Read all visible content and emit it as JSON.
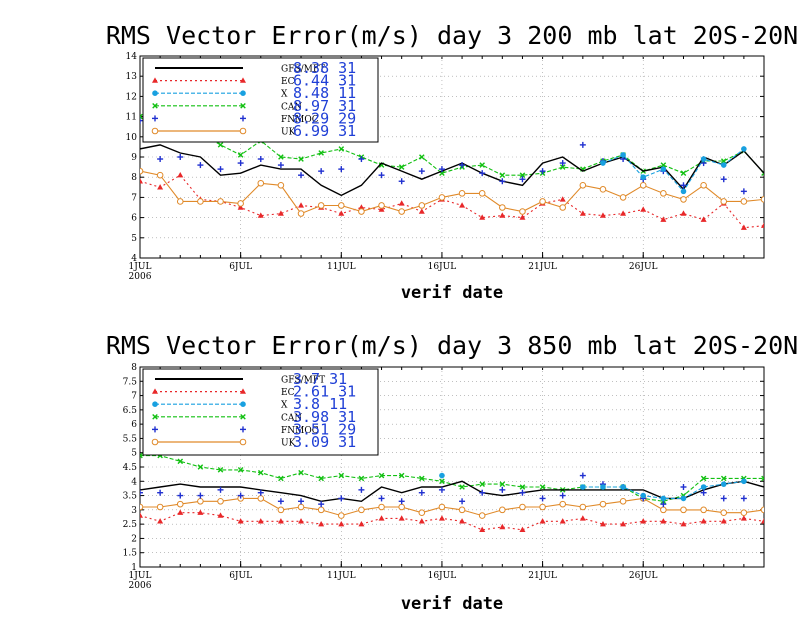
{
  "chart_data": [
    {
      "type": "line",
      "title": "RMS Vector Error(m/s) day 3  200 mb   lat 20S-20N",
      "xlabel": "verif date",
      "ylabel": "",
      "xlim": [
        1,
        31
      ],
      "ylim": [
        4,
        14
      ],
      "yticks": [
        "4",
        "5",
        "6",
        "7",
        "8",
        "9",
        "10",
        "11",
        "12",
        "13",
        "14"
      ],
      "xticks": [
        {
          "day": 1,
          "label": "1JUL",
          "label2": "2006"
        },
        {
          "day": 6,
          "label": "6JUL",
          "label2": ""
        },
        {
          "day": 11,
          "label": "11JUL",
          "label2": ""
        },
        {
          "day": 16,
          "label": "16JUL",
          "label2": ""
        },
        {
          "day": 21,
          "label": "21JUL",
          "label2": ""
        },
        {
          "day": 26,
          "label": "26JUL",
          "label2": ""
        }
      ],
      "grid": true,
      "legend_position": "top-left",
      "series": [
        {
          "name": "GFS/MFT",
          "stat": "8.38  31",
          "color": "#000000",
          "style": "solid",
          "marker": "none",
          "values": [
            9.4,
            9.6,
            9.2,
            9.0,
            8.1,
            8.2,
            8.6,
            8.4,
            8.4,
            7.6,
            7.1,
            7.6,
            8.7,
            8.3,
            7.9,
            8.3,
            8.7,
            8.2,
            7.8,
            7.6,
            8.7,
            9.0,
            8.3,
            8.7,
            9.0,
            8.3,
            8.5,
            7.4,
            9.0,
            8.6,
            9.3,
            8.2
          ]
        },
        {
          "name": "EC",
          "stat": "6.44  31",
          "color": "#e8282a",
          "style": "dotted",
          "marker": "triangle",
          "values": [
            7.8,
            7.5,
            8.1,
            6.9,
            6.8,
            6.5,
            6.1,
            6.2,
            6.6,
            6.5,
            6.2,
            6.5,
            6.4,
            6.7,
            6.3,
            6.9,
            6.6,
            6.0,
            6.1,
            6.0,
            6.7,
            6.9,
            6.2,
            6.1,
            6.2,
            6.4,
            5.9,
            6.2,
            5.9,
            6.7,
            5.5,
            5.6
          ]
        },
        {
          "name": "X",
          "stat": "8.48  11",
          "color": "#18a0e0",
          "style": "dashed",
          "marker": "circle",
          "values": [
            null,
            null,
            null,
            null,
            null,
            null,
            null,
            null,
            null,
            null,
            null,
            null,
            null,
            null,
            null,
            null,
            null,
            null,
            null,
            null,
            null,
            null,
            null,
            8.7,
            9.1,
            8.0,
            8.4,
            7.3,
            8.9,
            8.6,
            9.4,
            null
          ]
        },
        {
          "name": "CAN",
          "stat": "8.97  31",
          "color": "#12c012",
          "style": "dashed",
          "marker": "x",
          "values": [
            11.0,
            10.2,
            10.7,
            10.2,
            9.6,
            9.1,
            9.8,
            9.0,
            8.9,
            9.2,
            9.4,
            9.0,
            8.6,
            8.5,
            9.0,
            8.2,
            8.5,
            8.6,
            8.1,
            8.1,
            8.2,
            8.5,
            8.4,
            8.8,
            9.1,
            8.3,
            8.6,
            8.2,
            8.8,
            8.8,
            9.3,
            8.2
          ]
        },
        {
          "name": "FNMOC",
          "stat": "8.29  29",
          "color": "#2030d0",
          "style": "none",
          "marker": "plus",
          "values": [
            10.8,
            8.9,
            9.0,
            8.6,
            8.4,
            8.7,
            8.9,
            8.6,
            8.1,
            8.3,
            8.4,
            8.9,
            8.1,
            7.8,
            8.3,
            8.4,
            8.6,
            8.2,
            7.8,
            7.9,
            8.3,
            8.7,
            9.6,
            8.8,
            8.9,
            7.9,
            8.3,
            7.6,
            8.7,
            7.9,
            7.3,
            null
          ]
        },
        {
          "name": "UK",
          "stat": "6.99  31",
          "color": "#e08a2a",
          "style": "solid",
          "marker": "circle-open",
          "values": [
            8.3,
            8.1,
            6.8,
            6.8,
            6.8,
            6.7,
            7.7,
            7.6,
            6.2,
            6.6,
            6.6,
            6.3,
            6.6,
            6.3,
            6.6,
            7.0,
            7.2,
            7.2,
            6.5,
            6.3,
            6.8,
            6.5,
            7.6,
            7.4,
            7.0,
            7.6,
            7.2,
            6.9,
            7.6,
            6.8,
            6.8,
            6.9
          ]
        }
      ]
    },
    {
      "type": "line",
      "title": "RMS Vector Error(m/s) day 3  850 mb   lat 20S-20N",
      "xlabel": "verif date",
      "ylabel": "",
      "xlim": [
        1,
        31
      ],
      "ylim": [
        1,
        8
      ],
      "yticks": [
        "1",
        "1.5",
        "2",
        "2.5",
        "3",
        "3.5",
        "4",
        "4.5",
        "5",
        "5.5",
        "6",
        "6.5",
        "7",
        "7.5",
        "8"
      ],
      "xticks": [
        {
          "day": 1,
          "label": "1JUL",
          "label2": "2006"
        },
        {
          "day": 6,
          "label": "6JUL",
          "label2": ""
        },
        {
          "day": 11,
          "label": "11JUL",
          "label2": ""
        },
        {
          "day": 16,
          "label": "16JUL",
          "label2": ""
        },
        {
          "day": 21,
          "label": "21JUL",
          "label2": ""
        },
        {
          "day": 26,
          "label": "26JUL",
          "label2": ""
        }
      ],
      "grid": true,
      "legend_position": "top-left",
      "series": [
        {
          "name": "GFS/MFT",
          "stat": "3.7  31",
          "color": "#000000",
          "style": "solid",
          "marker": "none",
          "values": [
            3.7,
            3.8,
            3.9,
            3.8,
            3.8,
            3.8,
            3.7,
            3.6,
            3.5,
            3.3,
            3.4,
            3.3,
            3.8,
            3.6,
            3.8,
            3.8,
            4.0,
            3.6,
            3.5,
            3.6,
            3.7,
            3.7,
            3.7,
            3.7,
            3.7,
            3.7,
            3.4,
            3.4,
            3.7,
            3.9,
            4.0,
            3.8
          ]
        },
        {
          "name": "EC",
          "stat": "2.61  31",
          "color": "#e8282a",
          "style": "dotted",
          "marker": "triangle",
          "values": [
            2.8,
            2.6,
            2.9,
            2.9,
            2.8,
            2.6,
            2.6,
            2.6,
            2.6,
            2.5,
            2.5,
            2.5,
            2.7,
            2.7,
            2.6,
            2.7,
            2.6,
            2.3,
            2.4,
            2.3,
            2.6,
            2.6,
            2.7,
            2.5,
            2.5,
            2.6,
            2.6,
            2.5,
            2.6,
            2.6,
            2.7,
            2.6
          ]
        },
        {
          "name": "X",
          "stat": "3.8  11",
          "color": "#18a0e0",
          "style": "dashed",
          "marker": "circle",
          "values": [
            null,
            null,
            null,
            null,
            null,
            null,
            null,
            null,
            null,
            null,
            null,
            null,
            null,
            null,
            null,
            4.2,
            null,
            null,
            null,
            null,
            null,
            null,
            3.8,
            3.8,
            3.8,
            3.5,
            3.4,
            3.4,
            3.8,
            3.9,
            4.0,
            null
          ]
        },
        {
          "name": "CAN",
          "stat": "3.98  31",
          "color": "#12c012",
          "style": "dashed",
          "marker": "x",
          "values": [
            4.9,
            4.9,
            4.7,
            4.5,
            4.4,
            4.4,
            4.3,
            4.1,
            4.3,
            4.1,
            4.2,
            4.1,
            4.2,
            4.2,
            4.1,
            4.0,
            3.8,
            3.9,
            3.9,
            3.8,
            3.8,
            3.7,
            3.8,
            3.8,
            3.8,
            3.4,
            3.3,
            3.5,
            4.1,
            4.1,
            4.1,
            4.1
          ]
        },
        {
          "name": "FNMOC",
          "stat": "3.51  29",
          "color": "#2030d0",
          "style": "none",
          "marker": "plus",
          "values": [
            3.6,
            3.6,
            3.5,
            3.5,
            3.7,
            3.5,
            3.6,
            3.3,
            3.3,
            3.2,
            3.4,
            3.7,
            3.4,
            3.3,
            3.6,
            3.7,
            3.3,
            3.6,
            3.7,
            3.6,
            3.4,
            3.5,
            4.2,
            3.9,
            3.8,
            3.4,
            3.2,
            3.8,
            3.6,
            3.4,
            3.4,
            null
          ]
        },
        {
          "name": "UK",
          "stat": "3.09  31",
          "color": "#e08a2a",
          "style": "solid",
          "marker": "circle-open",
          "values": [
            3.1,
            3.1,
            3.2,
            3.3,
            3.3,
            3.4,
            3.4,
            3.0,
            3.1,
            3.0,
            2.8,
            3.0,
            3.1,
            3.1,
            2.9,
            3.1,
            3.0,
            2.8,
            3.0,
            3.1,
            3.1,
            3.2,
            3.1,
            3.2,
            3.3,
            3.4,
            3.0,
            3.0,
            3.0,
            2.9,
            2.9,
            3.0
          ]
        }
      ]
    }
  ]
}
